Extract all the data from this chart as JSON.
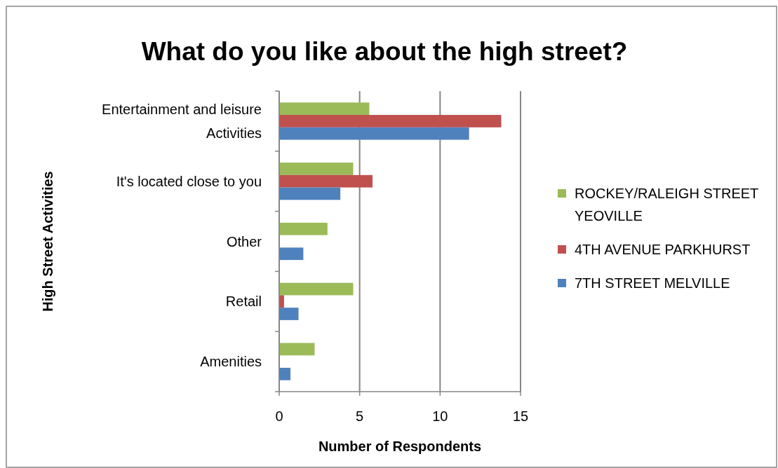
{
  "chart_data": {
    "type": "bar",
    "orientation": "horizontal",
    "title": "What do you like about the high street?",
    "xlabel": "Number of Respondents",
    "ylabel": "High Street Activities",
    "categories": [
      "Entertainment and leisure Activities",
      "It's located close to you",
      "Other",
      "Retail",
      "Amenities"
    ],
    "series": [
      {
        "name": "ROCKEY/RALEIGH STREET YEOVILLE",
        "color": "#9bbb59",
        "values": [
          5.6,
          4.6,
          3.0,
          4.6,
          2.2
        ]
      },
      {
        "name": "4TH AVENUE PARKHURST",
        "color": "#c0504d",
        "values": [
          13.8,
          5.8,
          null,
          0.3,
          null
        ]
      },
      {
        "name": "7TH STREET MELVILLE",
        "color": "#4f81bd",
        "values": [
          11.8,
          3.8,
          1.5,
          1.2,
          0.7
        ]
      }
    ],
    "xlim": [
      0,
      15
    ],
    "xticks": [
      0,
      5,
      10,
      15
    ],
    "grid": "x",
    "legend": "right"
  }
}
